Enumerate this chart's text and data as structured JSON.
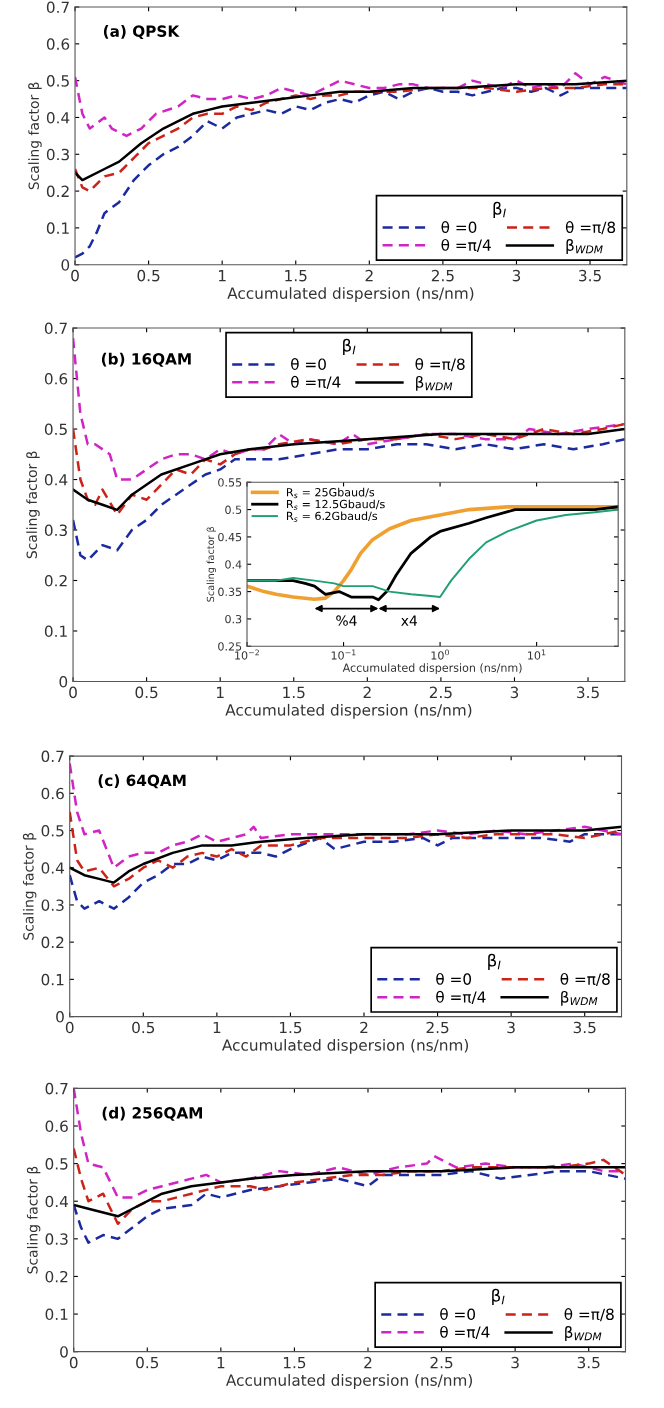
{
  "chart_data": [
    {
      "type": "line",
      "title": "(a) QPSK",
      "xlabel": "Accumulated dispersion (ns/nm)",
      "ylabel": "Scaling factor β",
      "legend_title": "β$_{I}$",
      "xlim": [
        0,
        3.75
      ],
      "ylim": [
        0,
        0.7
      ],
      "xticks": [
        0,
        0.5,
        1,
        1.5,
        2,
        2.5,
        3,
        3.5
      ],
      "yticks": [
        0,
        0.1,
        0.2,
        0.3,
        0.4,
        0.5,
        0.6,
        0.7
      ],
      "legend": "bottom right",
      "grid": false,
      "series": [
        {
          "name": "θ =0",
          "color": "#1c2aa0",
          "line_style": "dashed",
          "x": [
            0,
            0.05,
            0.1,
            0.15,
            0.2,
            0.3,
            0.4,
            0.5,
            0.6,
            0.7,
            0.8,
            0.9,
            1.0,
            1.1,
            1.2,
            1.3,
            1.4,
            1.5,
            1.6,
            1.7,
            1.8,
            1.9,
            2.0,
            2.1,
            2.2,
            2.3,
            2.4,
            2.5,
            2.6,
            2.7,
            2.8,
            2.9,
            3.0,
            3.1,
            3.2,
            3.3,
            3.4,
            3.5,
            3.6,
            3.75
          ],
          "values": [
            0.02,
            0.03,
            0.05,
            0.09,
            0.14,
            0.17,
            0.23,
            0.27,
            0.3,
            0.32,
            0.35,
            0.39,
            0.37,
            0.4,
            0.41,
            0.42,
            0.41,
            0.43,
            0.42,
            0.44,
            0.45,
            0.44,
            0.46,
            0.47,
            0.45,
            0.47,
            0.48,
            0.47,
            0.47,
            0.46,
            0.47,
            0.48,
            0.48,
            0.47,
            0.48,
            0.46,
            0.48,
            0.48,
            0.48,
            0.48
          ]
        },
        {
          "name": "θ =π/4",
          "color": "#d024c4",
          "line_style": "dashed",
          "x": [
            0,
            0.05,
            0.1,
            0.2,
            0.25,
            0.35,
            0.45,
            0.55,
            0.7,
            0.8,
            0.9,
            1.0,
            1.1,
            1.2,
            1.3,
            1.4,
            1.5,
            1.6,
            1.7,
            1.8,
            1.9,
            2.0,
            2.1,
            2.2,
            2.3,
            2.4,
            2.5,
            2.6,
            2.7,
            2.8,
            2.9,
            3.0,
            3.1,
            3.2,
            3.3,
            3.4,
            3.5,
            3.6,
            3.75
          ],
          "values": [
            0.51,
            0.41,
            0.37,
            0.4,
            0.37,
            0.35,
            0.37,
            0.41,
            0.43,
            0.46,
            0.45,
            0.45,
            0.46,
            0.45,
            0.46,
            0.48,
            0.47,
            0.46,
            0.48,
            0.5,
            0.49,
            0.48,
            0.48,
            0.49,
            0.49,
            0.48,
            0.48,
            0.48,
            0.5,
            0.49,
            0.48,
            0.5,
            0.48,
            0.49,
            0.48,
            0.52,
            0.49,
            0.51,
            0.49
          ]
        },
        {
          "name": "θ =π/8",
          "color": "#cc2218",
          "line_style": "dashed",
          "x": [
            0,
            0.05,
            0.1,
            0.2,
            0.3,
            0.4,
            0.5,
            0.6,
            0.7,
            0.8,
            0.9,
            1.0,
            1.1,
            1.2,
            1.3,
            1.4,
            1.5,
            1.6,
            1.7,
            1.8,
            1.9,
            2.0,
            2.2,
            2.4,
            2.6,
            2.8,
            3.0,
            3.2,
            3.4,
            3.6,
            3.75
          ],
          "values": [
            0.26,
            0.21,
            0.2,
            0.24,
            0.25,
            0.29,
            0.33,
            0.35,
            0.37,
            0.4,
            0.41,
            0.41,
            0.43,
            0.42,
            0.44,
            0.45,
            0.46,
            0.45,
            0.46,
            0.46,
            0.47,
            0.47,
            0.47,
            0.48,
            0.48,
            0.48,
            0.47,
            0.48,
            0.48,
            0.49,
            0.49
          ]
        },
        {
          "name": "β$_{WDM}$",
          "color": "#000000",
          "line_style": "solid",
          "x": [
            0,
            0.05,
            0.2,
            0.3,
            0.45,
            0.6,
            0.8,
            0.9,
            1.0,
            1.2,
            1.4,
            1.6,
            1.8,
            2.0,
            2.3,
            2.6,
            3.0,
            3.4,
            3.75
          ],
          "values": [
            0.25,
            0.23,
            0.26,
            0.28,
            0.33,
            0.37,
            0.41,
            0.42,
            0.43,
            0.44,
            0.45,
            0.46,
            0.47,
            0.47,
            0.48,
            0.48,
            0.49,
            0.49,
            0.5
          ]
        }
      ]
    },
    {
      "type": "line",
      "title": "(b) 16QAM",
      "xlabel": "Accumulated dispersion (ns/nm)",
      "ylabel": "Scaling factor β",
      "legend_title": "β$_{I}$",
      "xlim": [
        0,
        3.75
      ],
      "ylim": [
        0,
        0.7
      ],
      "xticks": [
        0,
        0.5,
        1,
        1.5,
        2,
        2.5,
        3,
        3.5
      ],
      "yticks": [
        0,
        0.1,
        0.2,
        0.3,
        0.4,
        0.5,
        0.6,
        0.7
      ],
      "legend": "top",
      "grid": false,
      "series": [
        {
          "name": "θ =0",
          "color": "#1c2aa0",
          "line_style": "dashed",
          "x": [
            0,
            0.05,
            0.1,
            0.2,
            0.3,
            0.4,
            0.5,
            0.6,
            0.7,
            0.8,
            0.9,
            1.0,
            1.1,
            1.2,
            1.4,
            1.6,
            1.8,
            2.0,
            2.2,
            2.4,
            2.6,
            2.8,
            3.0,
            3.2,
            3.4,
            3.6,
            3.75
          ],
          "values": [
            0.32,
            0.25,
            0.24,
            0.27,
            0.26,
            0.3,
            0.32,
            0.35,
            0.37,
            0.39,
            0.41,
            0.42,
            0.44,
            0.44,
            0.44,
            0.45,
            0.46,
            0.46,
            0.47,
            0.47,
            0.46,
            0.47,
            0.46,
            0.47,
            0.46,
            0.47,
            0.48
          ]
        },
        {
          "name": "θ =π/4",
          "color": "#d024c4",
          "line_style": "dashed",
          "x": [
            0,
            0.05,
            0.1,
            0.15,
            0.25,
            0.3,
            0.4,
            0.5,
            0.6,
            0.7,
            0.8,
            0.9,
            1.0,
            1.1,
            1.2,
            1.3,
            1.4,
            1.5,
            1.6,
            1.8,
            1.9,
            2.0,
            2.2,
            2.4,
            2.6,
            2.8,
            3.0,
            3.1,
            3.3,
            3.5,
            3.75
          ],
          "values": [
            0.68,
            0.53,
            0.47,
            0.47,
            0.45,
            0.4,
            0.4,
            0.42,
            0.44,
            0.45,
            0.45,
            0.44,
            0.46,
            0.45,
            0.46,
            0.46,
            0.49,
            0.47,
            0.48,
            0.47,
            0.49,
            0.47,
            0.48,
            0.49,
            0.49,
            0.48,
            0.48,
            0.5,
            0.49,
            0.5,
            0.51
          ]
        },
        {
          "name": "θ =π/8",
          "color": "#cc2218",
          "line_style": "dashed",
          "x": [
            0,
            0.05,
            0.1,
            0.15,
            0.2,
            0.3,
            0.4,
            0.5,
            0.6,
            0.7,
            0.8,
            0.9,
            1.0,
            1.1,
            1.2,
            1.3,
            1.4,
            1.6,
            1.8,
            2.0,
            2.2,
            2.4,
            2.6,
            2.8,
            3.0,
            3.2,
            3.4,
            3.6,
            3.75
          ],
          "values": [
            0.5,
            0.4,
            0.36,
            0.35,
            0.38,
            0.33,
            0.37,
            0.36,
            0.39,
            0.42,
            0.41,
            0.44,
            0.43,
            0.45,
            0.46,
            0.46,
            0.47,
            0.48,
            0.47,
            0.48,
            0.48,
            0.49,
            0.48,
            0.49,
            0.48,
            0.5,
            0.49,
            0.5,
            0.51
          ]
        },
        {
          "name": "β$_{WDM}$",
          "color": "#000000",
          "line_style": "solid",
          "x": [
            0,
            0.1,
            0.2,
            0.3,
            0.4,
            0.6,
            0.8,
            1.0,
            1.2,
            1.5,
            2.0,
            2.5,
            3.0,
            3.5,
            3.75
          ],
          "values": [
            0.38,
            0.36,
            0.35,
            0.34,
            0.37,
            0.41,
            0.43,
            0.45,
            0.46,
            0.47,
            0.48,
            0.49,
            0.49,
            0.49,
            0.5
          ]
        }
      ]
    },
    {
      "type": "line",
      "xlabel": "Accumulated dispersion (ns/nm)",
      "ylabel": "Scaling factor β",
      "log": "x",
      "xlim": [
        0.01,
        70
      ],
      "ylim": [
        0.25,
        0.55
      ],
      "xticks": [
        {
          "value": 0.01,
          "label": "10$^{−2}$"
        },
        {
          "value": 0.1,
          "label": "10$^{−1}$"
        },
        {
          "value": 1,
          "label": "10$^{0}$"
        },
        {
          "value": 10,
          "label": "10$^{1}$"
        }
      ],
      "yticks": [
        0.25,
        0.3,
        0.35,
        0.4,
        0.45,
        0.5,
        0.55
      ],
      "legend": "top left",
      "grid": false,
      "annotations": [
        "%4",
        "x4"
      ],
      "series": [
        {
          "name": "R$_{s}$ = 25Gbaud/s",
          "color": "#f0a030",
          "line_style": "solid",
          "x": [
            0.01,
            0.015,
            0.02,
            0.03,
            0.05,
            0.065,
            0.08,
            0.1,
            0.12,
            0.15,
            0.2,
            0.3,
            0.5,
            1,
            2,
            5,
            10,
            20,
            70
          ],
          "values": [
            0.36,
            0.35,
            0.345,
            0.34,
            0.336,
            0.338,
            0.35,
            0.37,
            0.39,
            0.42,
            0.445,
            0.465,
            0.48,
            0.49,
            0.5,
            0.505,
            0.505,
            0.505,
            0.505
          ]
        },
        {
          "name": "R$_{s}$ = 12.5Gbaud/s",
          "color": "#000000",
          "line_style": "solid",
          "x": [
            0.01,
            0.02,
            0.03,
            0.04,
            0.05,
            0.065,
            0.09,
            0.12,
            0.2,
            0.23,
            0.28,
            0.35,
            0.5,
            0.8,
            1,
            2,
            3,
            6,
            20,
            40,
            70
          ],
          "values": [
            0.37,
            0.37,
            0.37,
            0.365,
            0.36,
            0.345,
            0.35,
            0.34,
            0.34,
            0.335,
            0.35,
            0.38,
            0.42,
            0.45,
            0.46,
            0.475,
            0.485,
            0.5,
            0.5,
            0.5,
            0.505
          ]
        },
        {
          "name": "R$_{s}$ = 6.2Gbaud/s",
          "color": "#20a070",
          "line_style": "solid",
          "x": [
            0.01,
            0.02,
            0.03,
            0.05,
            0.08,
            0.1,
            0.2,
            0.3,
            0.5,
            0.8,
            1.0,
            1.3,
            2,
            3,
            5,
            10,
            20,
            40,
            70
          ],
          "values": [
            0.37,
            0.37,
            0.375,
            0.37,
            0.365,
            0.36,
            0.36,
            0.35,
            0.345,
            0.342,
            0.34,
            0.37,
            0.41,
            0.44,
            0.46,
            0.48,
            0.49,
            0.495,
            0.5
          ]
        }
      ]
    },
    {
      "type": "line",
      "title": "(c) 64QAM",
      "xlabel": "Accumulated dispersion (ns/nm)",
      "ylabel": "Scaling factor β",
      "legend_title": "β$_{I}$",
      "xlim": [
        0,
        3.75
      ],
      "ylim": [
        0,
        0.7
      ],
      "xticks": [
        0,
        0.5,
        1,
        1.5,
        2,
        2.5,
        3,
        3.5
      ],
      "yticks": [
        0,
        0.1,
        0.2,
        0.3,
        0.4,
        0.5,
        0.6,
        0.7
      ],
      "legend": "bottom right",
      "grid": false,
      "series": [
        {
          "name": "θ =0",
          "color": "#1c2aa0",
          "line_style": "dashed",
          "x": [
            0,
            0.05,
            0.1,
            0.2,
            0.3,
            0.4,
            0.5,
            0.6,
            0.7,
            0.8,
            0.9,
            1.0,
            1.1,
            1.2,
            1.3,
            1.4,
            1.5,
            1.7,
            1.8,
            2.0,
            2.2,
            2.4,
            2.5,
            2.6,
            2.8,
            3.0,
            3.2,
            3.4,
            3.5,
            3.75
          ],
          "values": [
            0.38,
            0.31,
            0.29,
            0.31,
            0.29,
            0.32,
            0.36,
            0.38,
            0.41,
            0.41,
            0.43,
            0.42,
            0.44,
            0.44,
            0.44,
            0.43,
            0.45,
            0.48,
            0.45,
            0.47,
            0.47,
            0.48,
            0.46,
            0.48,
            0.48,
            0.48,
            0.48,
            0.47,
            0.49,
            0.49
          ]
        },
        {
          "name": "θ =π/4",
          "color": "#d024c4",
          "line_style": "dashed",
          "x": [
            0,
            0.05,
            0.1,
            0.2,
            0.3,
            0.4,
            0.5,
            0.6,
            0.7,
            0.8,
            0.9,
            1.0,
            1.1,
            1.2,
            1.25,
            1.3,
            1.5,
            1.7,
            1.9,
            2.1,
            2.3,
            2.5,
            2.7,
            2.9,
            3.1,
            3.3,
            3.5,
            3.75
          ],
          "values": [
            0.68,
            0.55,
            0.49,
            0.5,
            0.4,
            0.43,
            0.44,
            0.44,
            0.46,
            0.47,
            0.49,
            0.47,
            0.48,
            0.49,
            0.51,
            0.48,
            0.49,
            0.49,
            0.49,
            0.49,
            0.49,
            0.5,
            0.49,
            0.5,
            0.49,
            0.5,
            0.51,
            0.49
          ]
        },
        {
          "name": "θ =π/8",
          "color": "#cc2218",
          "line_style": "dashed",
          "x": [
            0,
            0.05,
            0.1,
            0.2,
            0.3,
            0.4,
            0.5,
            0.6,
            0.7,
            0.8,
            0.9,
            1.0,
            1.1,
            1.2,
            1.3,
            1.5,
            1.7,
            1.9,
            2.1,
            2.3,
            2.5,
            2.7,
            2.9,
            3.1,
            3.3,
            3.5,
            3.75
          ],
          "values": [
            0.55,
            0.42,
            0.39,
            0.4,
            0.35,
            0.37,
            0.4,
            0.42,
            0.4,
            0.43,
            0.44,
            0.43,
            0.45,
            0.43,
            0.46,
            0.46,
            0.48,
            0.48,
            0.48,
            0.48,
            0.49,
            0.48,
            0.49,
            0.49,
            0.49,
            0.48,
            0.5
          ]
        },
        {
          "name": "β$_{WDM}$",
          "color": "#000000",
          "line_style": "solid",
          "x": [
            0,
            0.1,
            0.2,
            0.3,
            0.4,
            0.5,
            0.7,
            0.9,
            1.1,
            1.3,
            1.6,
            2.0,
            2.5,
            3.0,
            3.5,
            3.75
          ],
          "values": [
            0.4,
            0.38,
            0.37,
            0.36,
            0.39,
            0.41,
            0.44,
            0.46,
            0.46,
            0.47,
            0.48,
            0.49,
            0.49,
            0.5,
            0.5,
            0.51
          ]
        }
      ]
    },
    {
      "type": "line",
      "title": "(d) 256QAM",
      "xlabel": "Accumulated dispersion (ns/nm)",
      "ylabel": "Scaling factor β",
      "legend_title": "β$_{I}$",
      "xlim": [
        0,
        3.75
      ],
      "ylim": [
        0,
        0.7
      ],
      "xticks": [
        0,
        0.5,
        1,
        1.5,
        2,
        2.5,
        3,
        3.5
      ],
      "yticks": [
        0,
        0.1,
        0.2,
        0.3,
        0.4,
        0.5,
        0.6,
        0.7
      ],
      "legend": "bottom right",
      "grid": false,
      "series": [
        {
          "name": "θ =0",
          "color": "#1c2aa0",
          "line_style": "dashed",
          "x": [
            0,
            0.05,
            0.1,
            0.2,
            0.3,
            0.4,
            0.5,
            0.6,
            0.8,
            0.9,
            1.0,
            1.2,
            1.4,
            1.6,
            1.8,
            2.0,
            2.1,
            2.3,
            2.5,
            2.7,
            2.9,
            3.1,
            3.3,
            3.5,
            3.75
          ],
          "values": [
            0.39,
            0.33,
            0.29,
            0.31,
            0.3,
            0.33,
            0.36,
            0.38,
            0.39,
            0.42,
            0.41,
            0.43,
            0.44,
            0.45,
            0.46,
            0.44,
            0.47,
            0.47,
            0.47,
            0.48,
            0.46,
            0.47,
            0.48,
            0.48,
            0.46
          ]
        },
        {
          "name": "θ =π/4",
          "color": "#d024c4",
          "line_style": "dashed",
          "x": [
            0,
            0.05,
            0.1,
            0.2,
            0.3,
            0.4,
            0.5,
            0.6,
            0.7,
            0.8,
            0.9,
            1.0,
            1.2,
            1.4,
            1.6,
            1.8,
            2.0,
            2.2,
            2.4,
            2.45,
            2.6,
            2.8,
            3.0,
            3.2,
            3.4,
            3.6,
            3.75
          ],
          "values": [
            0.7,
            0.58,
            0.5,
            0.49,
            0.41,
            0.41,
            0.43,
            0.44,
            0.45,
            0.46,
            0.47,
            0.45,
            0.46,
            0.48,
            0.47,
            0.49,
            0.47,
            0.49,
            0.5,
            0.52,
            0.49,
            0.5,
            0.49,
            0.49,
            0.5,
            0.48,
            0.48
          ]
        },
        {
          "name": "θ =π/8",
          "color": "#cc2218",
          "line_style": "dashed",
          "x": [
            0,
            0.05,
            0.1,
            0.2,
            0.3,
            0.4,
            0.5,
            0.6,
            0.8,
            1.0,
            1.2,
            1.3,
            1.5,
            1.7,
            1.9,
            2.1,
            2.3,
            2.5,
            2.7,
            2.9,
            3.1,
            3.3,
            3.5,
            3.6,
            3.75
          ],
          "values": [
            0.54,
            0.46,
            0.4,
            0.42,
            0.34,
            0.38,
            0.4,
            0.4,
            0.42,
            0.44,
            0.44,
            0.43,
            0.45,
            0.46,
            0.47,
            0.47,
            0.48,
            0.48,
            0.49,
            0.49,
            0.49,
            0.49,
            0.5,
            0.51,
            0.47
          ]
        },
        {
          "name": "β$_{WDM}$",
          "color": "#000000",
          "line_style": "solid",
          "x": [
            0,
            0.1,
            0.2,
            0.3,
            0.4,
            0.6,
            0.8,
            1.0,
            1.2,
            1.5,
            2.0,
            2.5,
            3.0,
            3.5,
            3.75
          ],
          "values": [
            0.39,
            0.38,
            0.37,
            0.36,
            0.38,
            0.42,
            0.44,
            0.45,
            0.46,
            0.47,
            0.48,
            0.48,
            0.49,
            0.49,
            0.49
          ]
        }
      ]
    }
  ]
}
